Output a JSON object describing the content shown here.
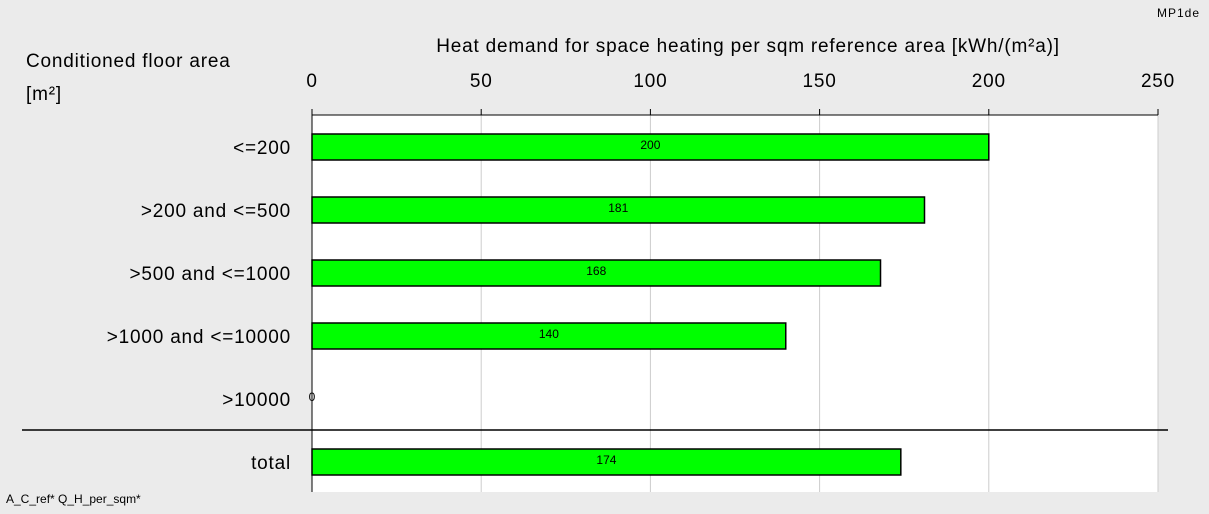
{
  "chart_data": {
    "type": "barh",
    "corner_label": "MP1de",
    "title": "Heat demand for space heating per sqm reference area [kWh/(m²a)]",
    "y_label_lines": [
      "Conditioned floor area",
      "[m²]"
    ],
    "footnote": "A_C_ref* Q_H_per_sqm*",
    "categories": [
      "<=200",
      ">200 and <=500",
      ">500 and <=1000",
      ">1000 and <=10000",
      ">10000",
      "total"
    ],
    "values": [
      200,
      181,
      168,
      140,
      0,
      174
    ],
    "color": "#00ff00",
    "xlim": [
      0,
      250
    ],
    "xticks": [
      0,
      50,
      100,
      150,
      200,
      250
    ],
    "grid": true
  }
}
